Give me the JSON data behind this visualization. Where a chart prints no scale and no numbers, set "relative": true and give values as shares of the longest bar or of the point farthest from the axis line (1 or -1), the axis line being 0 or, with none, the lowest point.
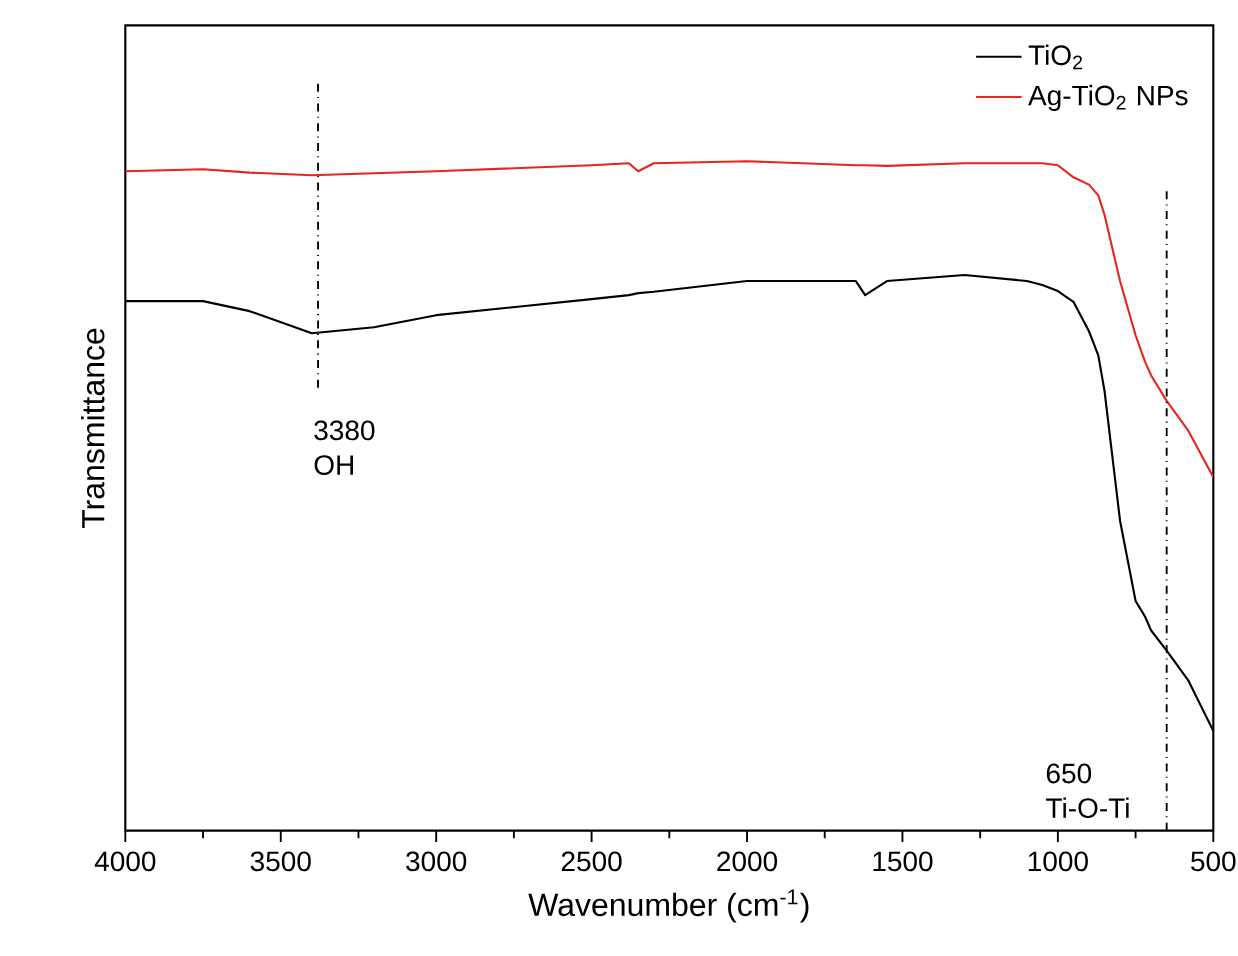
{
  "chart_data": {
    "type": "line",
    "xlabel": "Wavenumber (cm$^{-1}$)",
    "ylabel": "Transmittance",
    "relative": true,
    "xlim": [
      4000,
      500
    ],
    "xticks": [
      4000,
      3500,
      3000,
      2500,
      2000,
      1500,
      1000,
      500
    ],
    "legend": "top right",
    "grid": false,
    "marker": "none",
    "line_style": "solid",
    "x": [
      4000,
      3750,
      3600,
      3400,
      3200,
      3000,
      2500,
      2380,
      2350,
      2300,
      2000,
      1650,
      1620,
      1550,
      1300,
      1100,
      1050,
      1000,
      950,
      900,
      870,
      850,
      800,
      750,
      720,
      700,
      650,
      580,
      500
    ],
    "series": [
      {
        "name": "TiO$_{2}$",
        "color": "#000000",
        "values": [
          0.791,
          0.791,
          0.776,
          0.743,
          0.752,
          0.77,
          0.794,
          0.8,
          0.803,
          0.805,
          0.821,
          0.821,
          0.8,
          0.821,
          0.83,
          0.821,
          0.815,
          0.806,
          0.79,
          0.746,
          0.71,
          0.657,
          0.463,
          0.343,
          0.32,
          0.299,
          0.269,
          0.224,
          0.149
        ]
      },
      {
        "name": "Ag-TiO$_{2}$ NPs",
        "color": "#e8261c",
        "values": [
          0.985,
          0.988,
          0.983,
          0.979,
          0.982,
          0.985,
          0.994,
          0.997,
          0.985,
          0.997,
          1.0,
          0.994,
          0.994,
          0.993,
          0.997,
          0.997,
          0.997,
          0.994,
          0.976,
          0.965,
          0.949,
          0.92,
          0.821,
          0.74,
          0.701,
          0.68,
          0.642,
          0.597,
          0.528
        ]
      }
    ],
    "ref_lines": [
      {
        "axis": "x",
        "value": 3380,
        "label": "3380 OH",
        "line_style": "dashdot"
      },
      {
        "axis": "x",
        "value": 650,
        "label": "650 Ti-O-Ti",
        "line_style": "dashdot"
      }
    ]
  }
}
